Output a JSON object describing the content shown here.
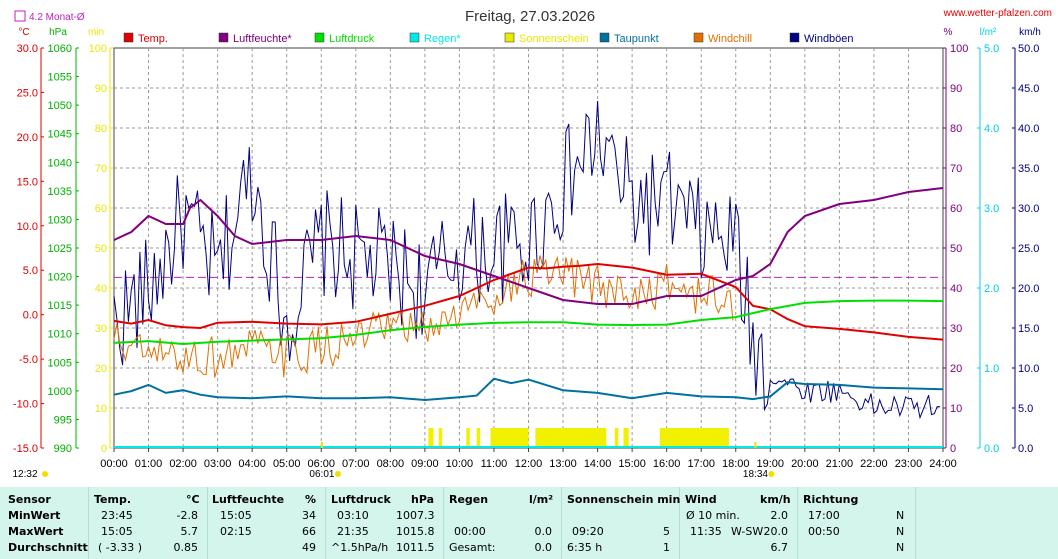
{
  "chart_data": {
    "type": "line",
    "title": "Freitag, 27.03.2026",
    "source_link": "www.wetter-pfalzen.com",
    "monthly_avg_label": "4.2 Monat-Ø",
    "monthly_avg_temp": 4.2,
    "x_ticks": [
      "00:00",
      "01:00",
      "02:00",
      "03:00",
      "04:00",
      "05:00",
      "06:00",
      "07:00",
      "08:00",
      "09:00",
      "10:00",
      "11:00",
      "12:00",
      "13:00",
      "14:00",
      "15:00",
      "16:00",
      "17:00",
      "18:00",
      "19:00",
      "20:00",
      "21:00",
      "22:00",
      "23:00",
      "24:00"
    ],
    "xlim": [
      0,
      24
    ],
    "time_marks": [
      {
        "label": "12:32",
        "hour": -1
      },
      {
        "label": "06:01",
        "hour": 6.02
      },
      {
        "label": "18:34",
        "hour": 18.57
      }
    ],
    "axes": [
      {
        "unit": "°C",
        "ylim": [
          -15,
          30
        ],
        "ticks": [
          "30.0",
          "25.0",
          "20.0",
          "15.0",
          "10.0",
          "5.0",
          "0.0",
          "-5.0",
          "-10.0",
          "-15.0"
        ],
        "color": "#e00000"
      },
      {
        "unit": "hPa",
        "ylim": [
          990,
          1060
        ],
        "ticks": [
          "1060",
          "1055",
          "1050",
          "1045",
          "1040",
          "1035",
          "1030",
          "1025",
          "1020",
          "1015",
          "1010",
          "1005",
          "1000",
          "995",
          "990"
        ],
        "color": "#00b000"
      },
      {
        "unit": "min",
        "ylim": [
          0,
          100
        ],
        "ticks": [
          "100",
          "90",
          "80",
          "70",
          "60",
          "50",
          "40",
          "30",
          "20",
          "10",
          "0"
        ],
        "color": "#e8e800"
      },
      {
        "unit": "%",
        "ylim": [
          0,
          100
        ],
        "ticks": [
          "100",
          "90",
          "80",
          "70",
          "60",
          "50",
          "40",
          "30",
          "20",
          "10",
          "0"
        ],
        "color": "#800080"
      },
      {
        "unit": "l/m²",
        "ylim": [
          0,
          5
        ],
        "ticks": [
          "5.0",
          "4.0",
          "3.0",
          "2.0",
          "1.0",
          "0.0"
        ],
        "color": "#00d0e0"
      },
      {
        "unit": "km/h",
        "ylim": [
          0,
          50
        ],
        "ticks": [
          "50.0",
          "45.0",
          "40.0",
          "35.0",
          "30.0",
          "25.0",
          "20.0",
          "15.0",
          "10.0",
          "5.0",
          "0.0"
        ],
        "color": "#000080"
      }
    ],
    "legend": [
      {
        "name": "Temp.",
        "color": "#e00000"
      },
      {
        "name": "Luftfeuchte*",
        "color": "#800080"
      },
      {
        "name": "Luftdruck",
        "color": "#00e000"
      },
      {
        "name": "Regen*",
        "color": "#00e8e8"
      },
      {
        "name": "Sonnenschein",
        "color": "#e8e800"
      },
      {
        "name": "Taupunkt",
        "color": "#0070a0"
      },
      {
        "name": "Windchill",
        "color": "#e07000"
      },
      {
        "name": "Windböen",
        "color": "#000080"
      }
    ],
    "series": [
      {
        "name": "Temp.",
        "axis": 0,
        "color": "#e00000",
        "width": 2,
        "x": [
          0,
          0.5,
          1,
          1.5,
          2,
          2.5,
          3,
          4,
          5,
          6,
          7,
          8,
          9,
          10,
          11,
          12,
          12.5,
          13,
          13.5,
          14,
          15,
          16,
          17,
          18,
          18.5,
          19,
          19.5,
          20,
          21,
          22,
          23,
          24
        ],
        "y": [
          -0.7,
          -1.0,
          -0.6,
          -1.2,
          -1.4,
          -1.5,
          -0.9,
          -0.8,
          -1.0,
          -1.1,
          -0.8,
          0.1,
          1.0,
          2.1,
          3.9,
          5.3,
          5.2,
          5.4,
          5.5,
          5.7,
          5.3,
          4.5,
          4.6,
          3.1,
          1.0,
          0.6,
          -0.5,
          -1.3,
          -1.6,
          -2.0,
          -2.5,
          -2.8
        ]
      },
      {
        "name": "Luftfeuchte*",
        "axis": 3,
        "color": "#800080",
        "width": 2,
        "x": [
          0,
          0.5,
          1,
          1.5,
          2,
          2.2,
          2.5,
          3,
          3.5,
          4,
          5,
          6,
          7,
          8,
          9,
          10,
          11,
          12,
          13,
          14,
          15,
          16,
          17,
          18,
          18.5,
          19,
          19.5,
          20,
          21,
          22,
          23,
          24
        ],
        "y": [
          52,
          54,
          58,
          56,
          56,
          60,
          62,
          58,
          53,
          51,
          52,
          52,
          53,
          52,
          48,
          46,
          43,
          40,
          37,
          36,
          36,
          38,
          38,
          42,
          43,
          46,
          54,
          58,
          61,
          62,
          64,
          65
        ]
      },
      {
        "name": "Luftdruck",
        "axis": 1,
        "color": "#00e000",
        "width": 2,
        "x": [
          0,
          1,
          2,
          3,
          4,
          5,
          6,
          7,
          8,
          9,
          10,
          11,
          12,
          13,
          14,
          15,
          16,
          17,
          18,
          19,
          20,
          21,
          22,
          23,
          24
        ],
        "y": [
          1008.4,
          1008.7,
          1008.2,
          1008.6,
          1008.8,
          1009.0,
          1009.2,
          1009.8,
          1010.6,
          1011.2,
          1011.6,
          1011.9,
          1012.0,
          1012.0,
          1011.6,
          1011.5,
          1011.6,
          1012.4,
          1012.9,
          1014.3,
          1015.4,
          1015.7,
          1015.8,
          1015.8,
          1015.7
        ]
      },
      {
        "name": "Taupunkt",
        "axis": 0,
        "color": "#0070a0",
        "width": 2,
        "x": [
          0,
          0.5,
          1,
          1.5,
          2,
          2.5,
          3,
          4,
          5,
          6,
          7,
          8,
          9,
          10,
          10.5,
          11,
          11.5,
          12,
          12.5,
          13,
          14,
          15,
          16,
          17,
          18,
          18.5,
          19,
          19.5,
          20,
          21,
          22,
          23,
          24
        ],
        "y": [
          -9.0,
          -8.6,
          -7.9,
          -8.8,
          -8.5,
          -9.0,
          -9.3,
          -9.4,
          -9.2,
          -9.4,
          -9.4,
          -9.3,
          -9.6,
          -9.3,
          -9.1,
          -7.2,
          -7.7,
          -7.3,
          -7.9,
          -8.5,
          -8.8,
          -9.4,
          -8.8,
          -9.2,
          -9.3,
          -9.5,
          -9.2,
          -7.6,
          -7.8,
          -7.9,
          -8.2,
          -8.3,
          -8.4
        ]
      }
    ],
    "noisy_series": [
      {
        "name": "Windböen",
        "axis": 5,
        "color": "#000080",
        "width": 1,
        "points": [
          [
            0,
            15
          ],
          [
            1,
            19
          ],
          [
            2,
            28
          ],
          [
            3,
            21
          ],
          [
            4,
            34
          ],
          [
            5,
            15
          ],
          [
            6,
            25
          ],
          [
            7,
            23
          ],
          [
            8,
            22
          ],
          [
            9,
            19
          ],
          [
            10,
            24
          ],
          [
            11,
            24
          ],
          [
            12,
            25
          ],
          [
            13,
            32
          ],
          [
            14,
            38
          ],
          [
            15,
            30
          ],
          [
            16,
            30
          ],
          [
            17,
            26
          ],
          [
            18,
            25
          ],
          [
            18.5,
            12
          ],
          [
            19,
            9
          ],
          [
            20,
            7
          ],
          [
            21,
            7
          ],
          [
            22,
            5
          ],
          [
            23,
            5
          ],
          [
            24,
            5
          ]
        ]
      },
      {
        "name": "Windchill",
        "axis": 0,
        "color": "#e07000",
        "width": 1,
        "points": [
          [
            0,
            -3
          ],
          [
            1,
            -5
          ],
          [
            2,
            -5
          ],
          [
            3,
            -5
          ],
          [
            4,
            -4
          ],
          [
            5,
            -5
          ],
          [
            6,
            -4
          ],
          [
            7,
            -3
          ],
          [
            8,
            -2
          ],
          [
            9,
            -2
          ],
          [
            10,
            0
          ],
          [
            11,
            2
          ],
          [
            12,
            4
          ],
          [
            13,
            4
          ],
          [
            14,
            3
          ],
          [
            15,
            2
          ],
          [
            16,
            3
          ],
          [
            17,
            2
          ],
          [
            18,
            1
          ]
        ]
      }
    ],
    "sunshine_bars": [
      [
        9.1,
        9.25
      ],
      [
        9.4,
        9.5
      ],
      [
        10.2,
        10.3
      ],
      [
        10.5,
        10.6
      ],
      [
        10.9,
        12.0
      ],
      [
        12.2,
        14.25
      ],
      [
        14.5,
        14.6
      ],
      [
        14.75,
        14.9
      ],
      [
        15.8,
        17.8
      ]
    ],
    "rain_total": 0.0
  },
  "stats": {
    "headers": {
      "sensor": "Sensor",
      "temp": "Temp.",
      "temp_unit": "°C",
      "hum": "Luftfeuchte",
      "hum_unit": "%",
      "press": "Luftdruck",
      "press_unit": "hPa",
      "rain": "Regen",
      "rain_unit": "l/m²",
      "sun": "Sonnenschein min",
      "wind": "Wind",
      "wind_unit": "km/h",
      "dir": "Richtung"
    },
    "rows": [
      {
        "label": "MinWert",
        "temp_time": "23:45",
        "temp_val": "-2.8",
        "hum_time": "15:05",
        "hum_val": "34",
        "press_time": "03:10",
        "press_val": "1007.3",
        "rain_time": "",
        "rain_val": "",
        "sun_time": "",
        "sun_val": "",
        "wind_time": "Ø 10 min.",
        "wind_dir": "",
        "wind_val": "2.0",
        "dir_time": "17:00",
        "dir_val": "N"
      },
      {
        "label": "MaxWert",
        "temp_time": "15:05",
        "temp_val": "5.7",
        "hum_time": "02:15",
        "hum_val": "66",
        "press_time": "21:35",
        "press_val": "1015.8",
        "rain_time": "00:00",
        "rain_val": "0.0",
        "sun_time": "09:20",
        "sun_val": "5",
        "wind_time": "11:35",
        "wind_dir": "W-SW",
        "wind_val": "20.0",
        "dir_time": "00:50",
        "dir_val": "N"
      },
      {
        "label": "Durchschnitt",
        "temp_time": "( -3.33 )",
        "temp_val": "0.85",
        "hum_time": "",
        "hum_val": "49",
        "press_time": "^1.5hPa/h",
        "press_val": "1011.5",
        "rain_time": "Gesamt:",
        "rain_val": "0.0",
        "sun_time": "6:35 h",
        "sun_val": "1",
        "wind_time": "",
        "wind_dir": "",
        "wind_val": "6.7",
        "dir_time": "",
        "dir_val": "N"
      }
    ]
  }
}
